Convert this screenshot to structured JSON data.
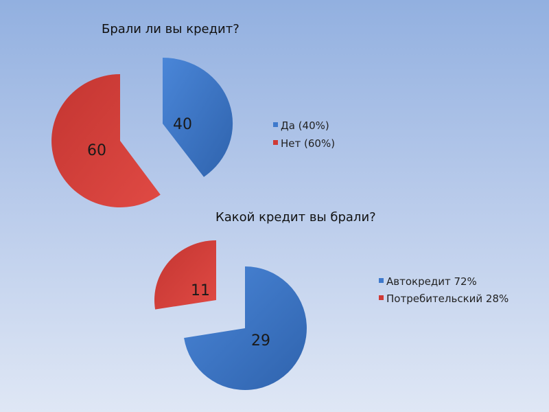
{
  "colors": {
    "blue": "#3e79cc",
    "red": "#cf3a36"
  },
  "chart_data": [
    {
      "type": "pie",
      "title": "Брали ли вы кредит?",
      "series": [
        {
          "label": "40",
          "value": 40,
          "legend": "Да (40%)",
          "color": "blue"
        },
        {
          "label": "60",
          "value": 60,
          "legend": "Нет (60%)",
          "color": "red"
        }
      ],
      "legend_position": "right"
    },
    {
      "type": "pie",
      "title": "Какой кредит вы брали?",
      "series": [
        {
          "label": "29",
          "value": 29,
          "legend": "Автокредит 72%",
          "color": "blue"
        },
        {
          "label": "11",
          "value": 11,
          "legend": "Потребительский 28%",
          "color": "red"
        }
      ],
      "legend_position": "right"
    }
  ]
}
